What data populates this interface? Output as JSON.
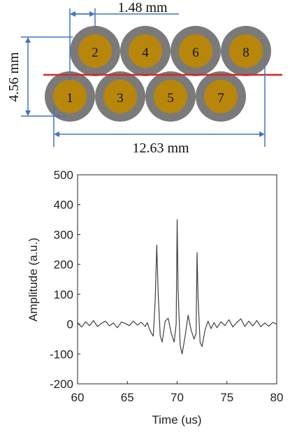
{
  "diagram": {
    "dim_pitch": "1.48 mm",
    "dim_height": "4.56 mm",
    "dim_width": "12.63 mm",
    "wire_labels": [
      "1",
      "2",
      "3",
      "4",
      "5",
      "6",
      "7",
      "8"
    ],
    "colors": {
      "core": "#b8860b",
      "jacket": "#7a7a7a",
      "dimension": "#4472c4",
      "cut_line": "#d62728"
    }
  },
  "chart_data": {
    "type": "line",
    "xlabel": "Time (us)",
    "ylabel": "Amplitude (a.u.)",
    "xlim": [
      60,
      80
    ],
    "ylim": [
      -200,
      500
    ],
    "xticks": [
      60,
      65,
      70,
      75,
      80
    ],
    "yticks": [
      -200,
      -100,
      0,
      100,
      200,
      300,
      400,
      500
    ],
    "grid": false,
    "series": [
      {
        "color": "#404040",
        "x": [
          60,
          60.4,
          60.8,
          61.2,
          61.6,
          62,
          62.4,
          62.8,
          63.2,
          63.6,
          64,
          64.4,
          64.8,
          65.2,
          65.6,
          66,
          66.4,
          66.8,
          67,
          67.2,
          67.4,
          67.6,
          67.8,
          67.95,
          68.1,
          68.3,
          68.5,
          68.8,
          69.1,
          69.4,
          69.7,
          69.9,
          70.0,
          70.1,
          70.3,
          70.5,
          70.8,
          71.1,
          71.4,
          71.7,
          71.9,
          72.0,
          72.1,
          72.3,
          72.5,
          72.8,
          73.1,
          73.4,
          73.7,
          74,
          74.4,
          74.8,
          75.2,
          75.6,
          76,
          76.4,
          76.8,
          77.2,
          77.6,
          78,
          78.4,
          78.8,
          79.2,
          79.6,
          80
        ],
        "y": [
          5,
          -10,
          8,
          -5,
          12,
          -8,
          3,
          10,
          -6,
          4,
          -12,
          7,
          2,
          -5,
          10,
          -3,
          6,
          -8,
          5,
          -15,
          -30,
          -40,
          80,
          265,
          100,
          -40,
          -60,
          10,
          20,
          -30,
          -60,
          0,
          350,
          110,
          -70,
          -100,
          -40,
          30,
          -20,
          -50,
          -30,
          240,
          90,
          -60,
          -75,
          -20,
          10,
          -15,
          5,
          -12,
          8,
          -5,
          15,
          -10,
          6,
          18,
          -8,
          10,
          -6,
          12,
          -9,
          4,
          -7,
          6,
          0
        ]
      }
    ]
  }
}
